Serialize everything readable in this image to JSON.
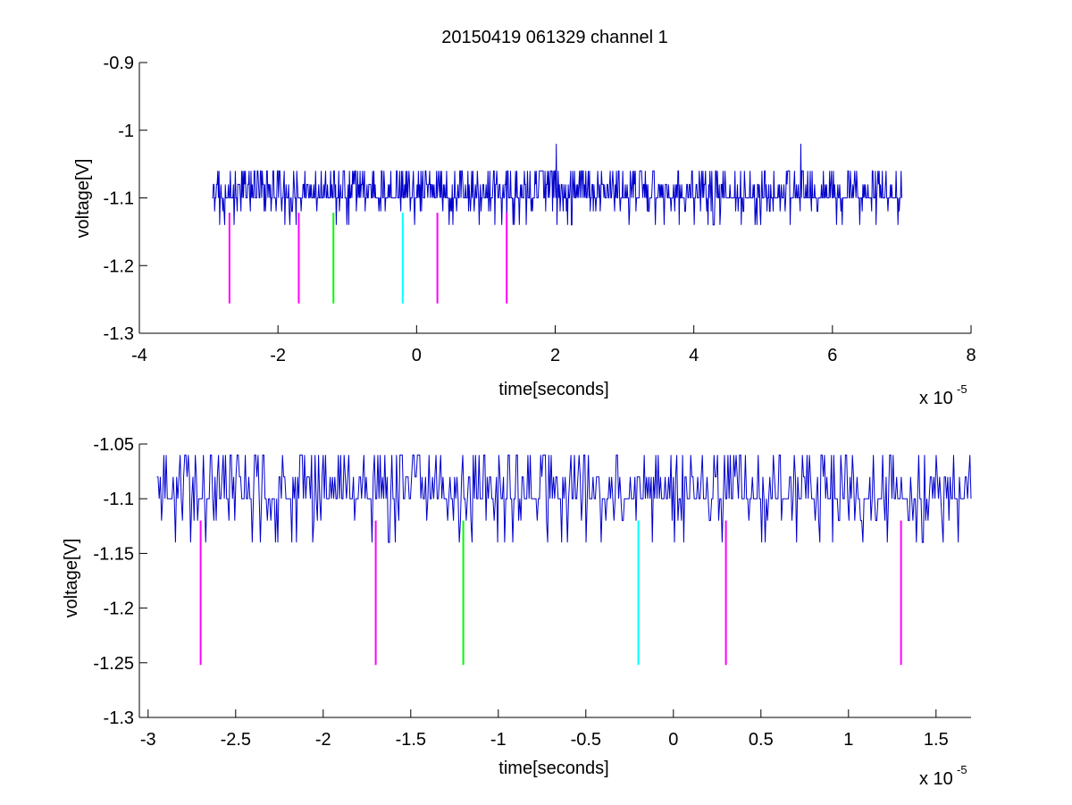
{
  "chart_data": [
    {
      "type": "line",
      "title": "20150419 061329 channel 1",
      "xlabel": "time[seconds]",
      "ylabel": "voltage[V]",
      "x_exponent_base": "x 10",
      "x_exponent_power": "-5",
      "xlim": [
        -4,
        8
      ],
      "ylim": [
        -1.3,
        -0.9
      ],
      "xticks": [
        -4,
        -2,
        0,
        2,
        4,
        6,
        8
      ],
      "xtick_labels": [
        "-4",
        "-2",
        "0",
        "2",
        "4",
        "6",
        "8"
      ],
      "yticks": [
        -1.3,
        -1.2,
        -1.1,
        -1.0,
        -0.9
      ],
      "ytick_labels": [
        "-1.3",
        "-1.2",
        "-1.1",
        "-1",
        "-0.9"
      ],
      "grid": false,
      "signal": {
        "color": "#0000cc",
        "x_range": [
          -2.95,
          7.0
        ],
        "baseline": -1.1,
        "levels": [
          -1.14,
          -1.12,
          -1.1,
          -1.08,
          -1.06
        ],
        "spikes": [
          {
            "x": 2.02,
            "y": -1.02
          },
          {
            "x": 5.54,
            "y": -1.02
          }
        ]
      },
      "markers": [
        {
          "x": -2.7,
          "color": "#ff00ff",
          "y_top": -1.122,
          "y_bottom": -1.256
        },
        {
          "x": -1.7,
          "color": "#ff00ff",
          "y_top": -1.122,
          "y_bottom": -1.256
        },
        {
          "x": -1.2,
          "color": "#00ff00",
          "y_top": -1.122,
          "y_bottom": -1.256
        },
        {
          "x": -0.2,
          "color": "#00ffff",
          "y_top": -1.122,
          "y_bottom": -1.256
        },
        {
          "x": 0.3,
          "color": "#ff00ff",
          "y_top": -1.122,
          "y_bottom": -1.256
        },
        {
          "x": 1.3,
          "color": "#ff00ff",
          "y_top": -1.122,
          "y_bottom": -1.256
        }
      ]
    },
    {
      "type": "line",
      "title": "",
      "xlabel": "time[seconds]",
      "ylabel": "voltage[V]",
      "x_exponent_base": "x 10",
      "x_exponent_power": "-5",
      "xlim": [
        -3.05,
        1.7
      ],
      "ylim": [
        -1.3,
        -1.05
      ],
      "xticks": [
        -3,
        -2.5,
        -2,
        -1.5,
        -1,
        -0.5,
        0,
        0.5,
        1,
        1.5
      ],
      "xtick_labels": [
        "-3",
        "-2.5",
        "-2",
        "-1.5",
        "-1",
        "-0.5",
        "0",
        "0.5",
        "1",
        "1.5"
      ],
      "yticks": [
        -1.3,
        -1.25,
        -1.2,
        -1.15,
        -1.1,
        -1.05
      ],
      "ytick_labels": [
        "-1.3",
        "-1.25",
        "-1.2",
        "-1.15",
        "-1.1",
        "-1.05"
      ],
      "grid": false,
      "signal": {
        "color": "#0000cc",
        "x_range": [
          -2.95,
          1.7
        ],
        "baseline": -1.1,
        "levels": [
          -1.14,
          -1.12,
          -1.1,
          -1.08,
          -1.06
        ],
        "spikes": []
      },
      "markers": [
        {
          "x": -2.7,
          "color": "#ff00ff",
          "y_top": -1.12,
          "y_bottom": -1.252
        },
        {
          "x": -1.7,
          "color": "#ff00ff",
          "y_top": -1.12,
          "y_bottom": -1.252
        },
        {
          "x": -1.2,
          "color": "#00ff00",
          "y_top": -1.12,
          "y_bottom": -1.252
        },
        {
          "x": -0.2,
          "color": "#00ffff",
          "y_top": -1.12,
          "y_bottom": -1.252
        },
        {
          "x": 0.3,
          "color": "#ff00ff",
          "y_top": -1.12,
          "y_bottom": -1.252
        },
        {
          "x": 1.3,
          "color": "#ff00ff",
          "y_top": -1.12,
          "y_bottom": -1.252
        }
      ]
    }
  ]
}
